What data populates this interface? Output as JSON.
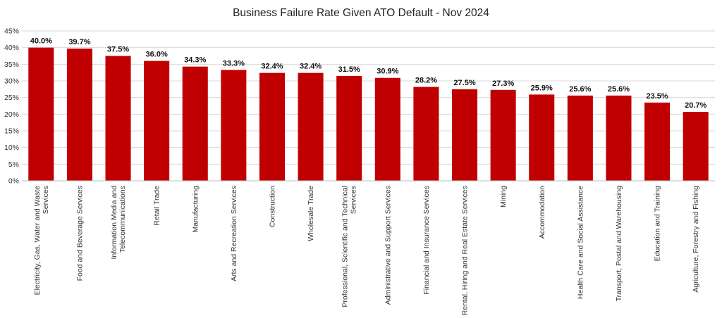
{
  "chart_data": {
    "type": "bar",
    "title": "Business Failure Rate Given ATO Default - Nov 2024",
    "xlabel": "",
    "ylabel": "",
    "ylim": [
      0,
      45
    ],
    "yticks": [
      "0%",
      "5%",
      "10%",
      "15%",
      "20%",
      "25%",
      "30%",
      "35%",
      "40%",
      "45%"
    ],
    "grid": true,
    "legend": "none",
    "bar_color": "#C00000",
    "categories": [
      [
        "Electricity, Gas, Water and Waste",
        "Services"
      ],
      [
        "Food and Beverage Services"
      ],
      [
        "Information Media and",
        "Telecommunications"
      ],
      [
        "Retail Trade"
      ],
      [
        "Manufacturing"
      ],
      [
        "Arts and Recreation Services"
      ],
      [
        "Construction"
      ],
      [
        "Wholesale Trade"
      ],
      [
        "Professional, Scientific and Technical",
        "Services"
      ],
      [
        "Administrative and Support Services"
      ],
      [
        "Financial and Insurance Services"
      ],
      [
        "Rental, Hiring and Real Estate Services"
      ],
      [
        "Mining"
      ],
      [
        "Accommodation"
      ],
      [
        "Health Care and Social Assistance"
      ],
      [
        "Transport, Postal and Warehousing"
      ],
      [
        "Education and Training"
      ],
      [
        "Agriculture, Forestry and Fishing"
      ]
    ],
    "values": [
      40.0,
      39.7,
      37.5,
      36.0,
      34.3,
      33.3,
      32.4,
      32.4,
      31.5,
      30.9,
      28.2,
      27.5,
      27.3,
      25.9,
      25.6,
      25.6,
      23.5,
      20.7
    ],
    "data_labels": [
      "40.0%",
      "39.7%",
      "37.5%",
      "36.0%",
      "34.3%",
      "33.3%",
      "32.4%",
      "32.4%",
      "31.5%",
      "30.9%",
      "28.2%",
      "27.5%",
      "27.3%",
      "25.9%",
      "25.6%",
      "25.6%",
      "23.5%",
      "20.7%"
    ]
  }
}
